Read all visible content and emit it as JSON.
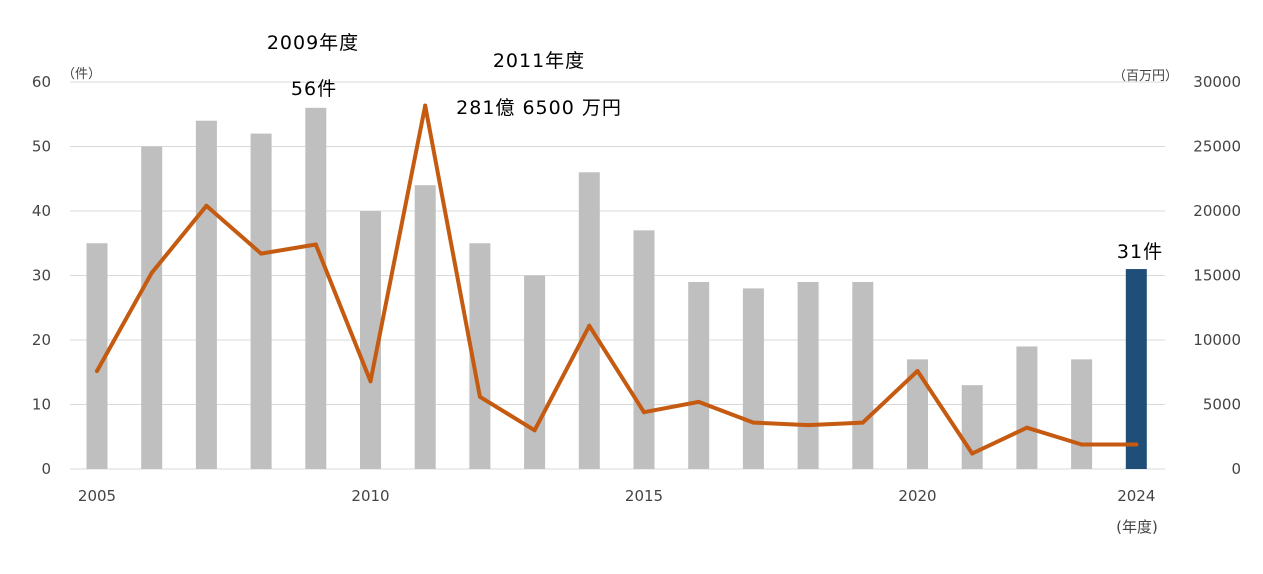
{
  "chart_data": {
    "type": "bar+line",
    "x": [
      2005,
      2006,
      2007,
      2008,
      2009,
      2010,
      2011,
      2012,
      2013,
      2014,
      2015,
      2016,
      2017,
      2018,
      2019,
      2020,
      2021,
      2022,
      2023,
      2024
    ],
    "x_tick_labels": [
      "2005",
      "2010",
      "2015",
      "2020",
      "2024"
    ],
    "x_tick_values": [
      2005,
      2010,
      2015,
      2020,
      2024
    ],
    "xlabel": "(年度)",
    "y_left_label": "（件）",
    "y_right_label": "（百万円）",
    "y_left_lim": [
      0,
      60
    ],
    "y_right_lim": [
      0,
      30000
    ],
    "y_left_ticks": [
      "0",
      "10",
      "20",
      "30",
      "40",
      "50",
      "60"
    ],
    "y_right_ticks": [
      "0",
      "5000",
      "10000",
      "15000",
      "20000",
      "25000",
      "30000"
    ],
    "series": [
      {
        "type": "bar",
        "axis": "left",
        "values": [
          35,
          50,
          54,
          52,
          56,
          40,
          44,
          35,
          30,
          46,
          37,
          29,
          28,
          29,
          29,
          17,
          13,
          19,
          17,
          31
        ],
        "highlight_index": 19
      },
      {
        "type": "line",
        "axis": "right",
        "values": [
          7600,
          15200,
          20400,
          16700,
          17400,
          6800,
          28165,
          5600,
          3000,
          11100,
          4400,
          5200,
          3600,
          3400,
          3600,
          7600,
          1200,
          3200,
          1900,
          1900
        ]
      }
    ],
    "annotations": [
      {
        "text": "2009年度",
        "target_year": 2009
      },
      {
        "text": "56件",
        "target_year": 2009
      },
      {
        "text": "2011年度",
        "target_year": 2011
      },
      {
        "text": "281億 6500 万円",
        "target_year": 2011
      },
      {
        "text": "31件",
        "target_year": 2024
      }
    ],
    "grid": true,
    "colors": {
      "bar": "#bfbfbf",
      "bar_highlight": "#1f4e79",
      "line": "#c55a11",
      "grid": "#d9d9d9"
    }
  }
}
